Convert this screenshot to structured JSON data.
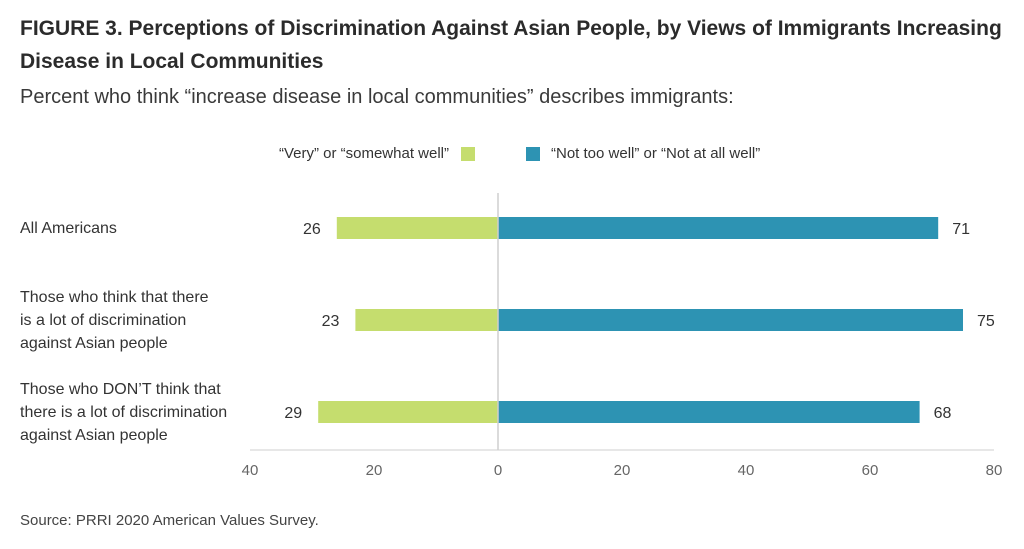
{
  "title": "FIGURE 3.  Perceptions of Discrimination Against Asian People, by Views of Immigrants Increasing Disease in Local Communities",
  "subtitle": "Percent who think “increase disease in local communities” describes immigrants:",
  "source": "Source: PRRI 2020 American Values Survey.",
  "chart_data": {
    "type": "bar",
    "orientation": "horizontal-diverging",
    "categories": [
      "All Americans",
      "Those who think that there is a lot of discrimination against Asian people",
      "Those who DON’T think that there is a lot of discrimination against Asian people"
    ],
    "category_lines": [
      [
        "All Americans"
      ],
      [
        "Those who think that there",
        "is a lot of discrimination",
        "against Asian people"
      ],
      [
        "Those who DON’T think that",
        "there is a lot of discrimination",
        "against Asian people"
      ]
    ],
    "series": [
      {
        "name": "“Very” or “somewhat well”",
        "direction": "left",
        "color": "#c5dd6e",
        "values": [
          26,
          23,
          29
        ]
      },
      {
        "name": "“Not too well” or “Not at all well”",
        "direction": "right",
        "color": "#2d93b3",
        "values": [
          71,
          75,
          68
        ]
      }
    ],
    "x_ticks": [
      {
        "value": -40,
        "label": "40"
      },
      {
        "value": -20,
        "label": "20"
      },
      {
        "value": 0,
        "label": "0"
      },
      {
        "value": 20,
        "label": "20"
      },
      {
        "value": 40,
        "label": "40"
      },
      {
        "value": 60,
        "label": "60"
      },
      {
        "value": 80,
        "label": "80"
      }
    ],
    "xlim": [
      -40,
      80
    ],
    "legend_position": "top-center",
    "grid": false
  }
}
